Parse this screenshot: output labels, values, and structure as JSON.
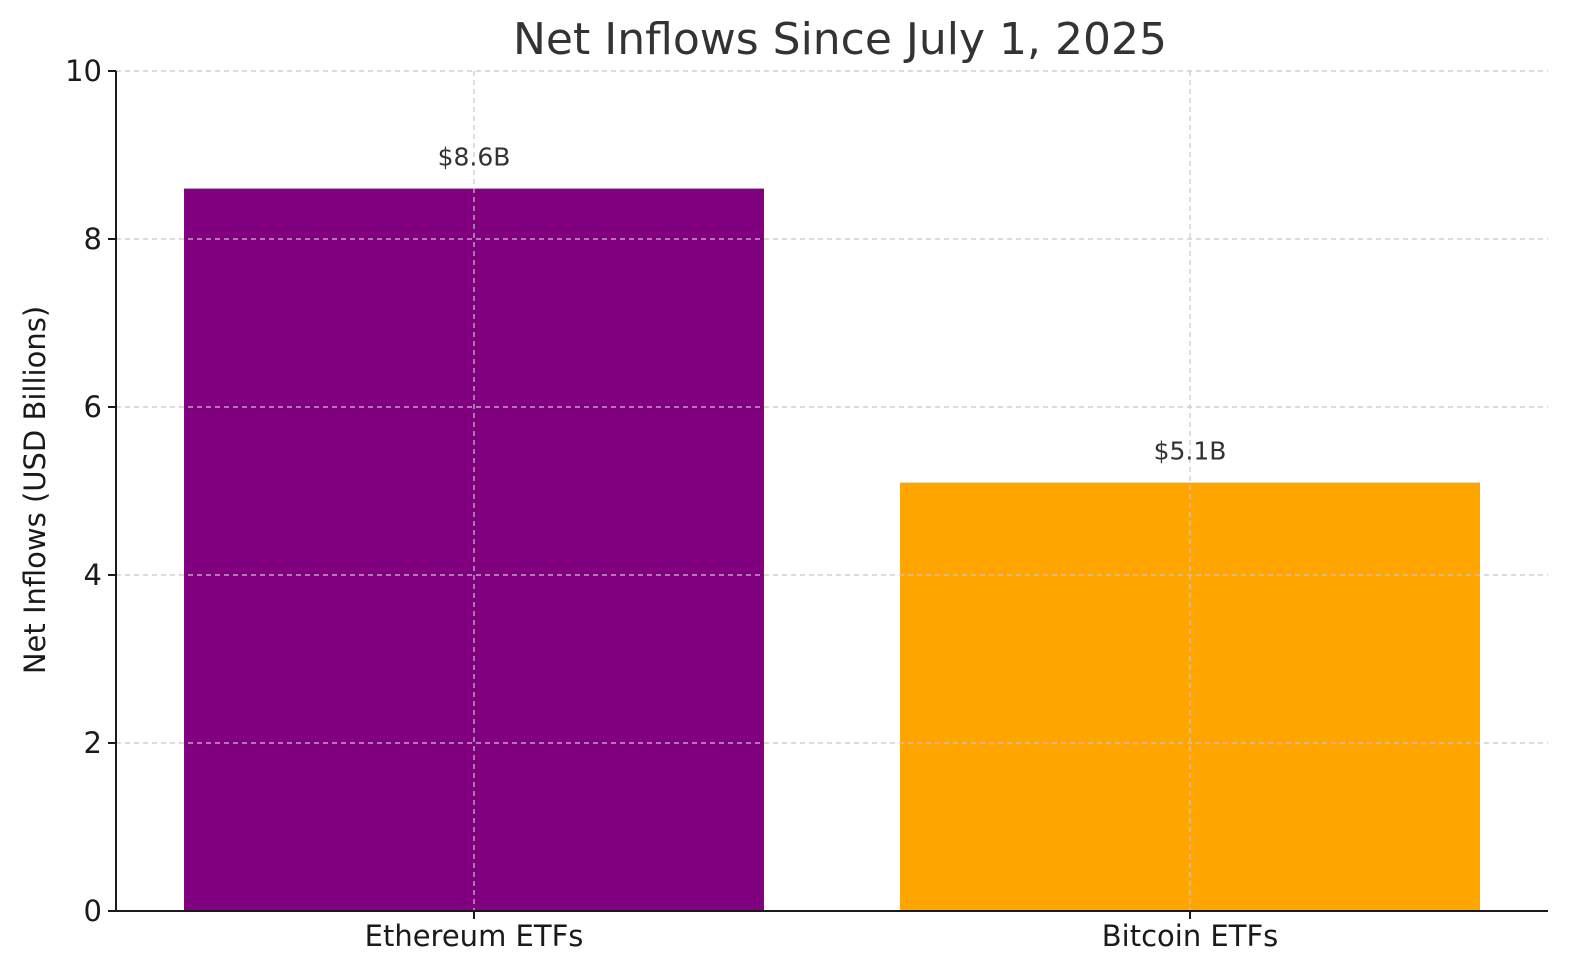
{
  "chart_data": {
    "type": "bar",
    "title": "Net Inflows Since July 1, 2025",
    "xlabel": "",
    "ylabel": "Net Inflows (USD Billions)",
    "categories": [
      "Ethereum ETFs",
      "Bitcoin ETFs"
    ],
    "values": [
      8.6,
      5.1
    ],
    "value_labels": [
      "$8.6B",
      "$5.1B"
    ],
    "colors": [
      "#800080",
      "#FFA500"
    ],
    "ylim": [
      0,
      10
    ],
    "yticks": [
      0,
      2,
      4,
      6,
      8,
      10
    ],
    "grid": true,
    "legend": "none"
  }
}
